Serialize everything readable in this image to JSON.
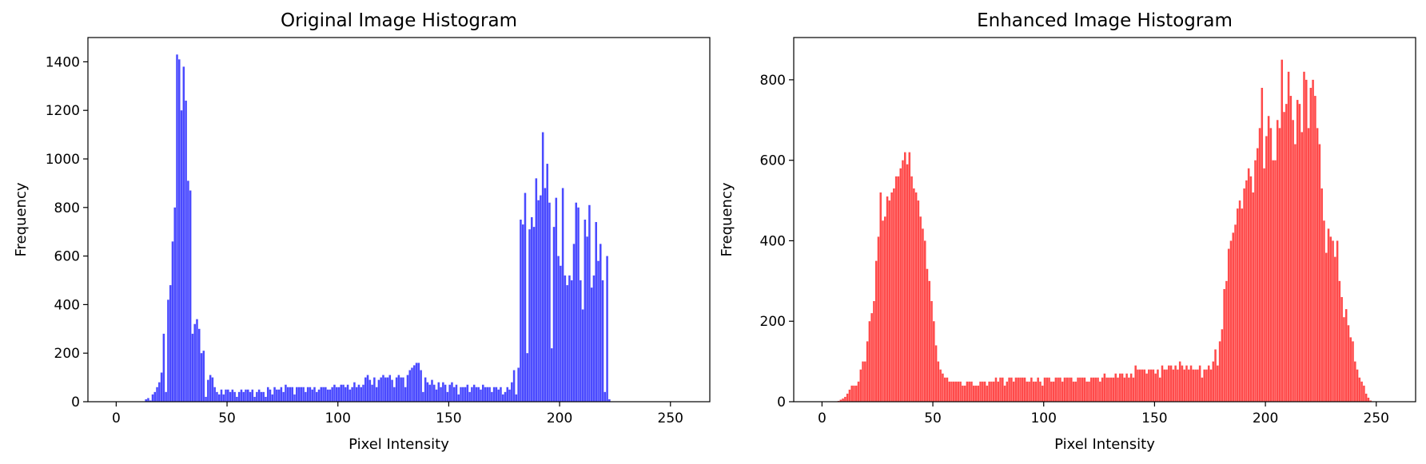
{
  "chart_data": [
    {
      "type": "bar",
      "title": "Original Image Histogram",
      "xlabel": "Pixel Intensity",
      "ylabel": "Frequency",
      "xlim": [
        -12.75,
        267.75
      ],
      "ylim": [
        0,
        1500
      ],
      "xticks": [
        0,
        50,
        100,
        150,
        200,
        250
      ],
      "yticks": [
        0,
        200,
        400,
        600,
        800,
        1000,
        1200,
        1400
      ],
      "color": "#4a4aff",
      "bin_start": 0,
      "bin_width": 1,
      "grid": false,
      "values": [
        0,
        0,
        0,
        0,
        0,
        0,
        0,
        0,
        0,
        0,
        0,
        0,
        0,
        10,
        15,
        5,
        30,
        40,
        60,
        80,
        120,
        280,
        40,
        420,
        480,
        660,
        800,
        1430,
        1410,
        1200,
        1380,
        1240,
        910,
        870,
        280,
        320,
        340,
        300,
        200,
        210,
        20,
        90,
        110,
        100,
        60,
        40,
        30,
        50,
        30,
        50,
        50,
        40,
        50,
        40,
        20,
        40,
        50,
        40,
        50,
        50,
        40,
        50,
        20,
        40,
        50,
        40,
        40,
        20,
        60,
        50,
        30,
        60,
        50,
        50,
        60,
        40,
        70,
        60,
        60,
        60,
        30,
        60,
        60,
        60,
        60,
        40,
        60,
        60,
        50,
        60,
        40,
        50,
        60,
        60,
        60,
        50,
        50,
        60,
        70,
        60,
        60,
        70,
        70,
        60,
        70,
        50,
        60,
        80,
        60,
        70,
        60,
        70,
        100,
        110,
        90,
        70,
        100,
        60,
        90,
        100,
        110,
        100,
        100,
        110,
        90,
        60,
        100,
        110,
        100,
        100,
        60,
        110,
        130,
        140,
        150,
        160,
        160,
        130,
        40,
        100,
        80,
        70,
        90,
        70,
        50,
        80,
        60,
        80,
        70,
        40,
        70,
        80,
        60,
        70,
        30,
        60,
        60,
        60,
        70,
        40,
        60,
        70,
        60,
        60,
        50,
        70,
        60,
        60,
        60,
        40,
        60,
        60,
        50,
        60,
        30,
        40,
        60,
        50,
        80,
        130,
        30,
        140,
        750,
        730,
        860,
        200,
        710,
        760,
        720,
        920,
        830,
        850,
        1110,
        880,
        980,
        820,
        220,
        720,
        840,
        600,
        560,
        880,
        520,
        480,
        520,
        500,
        650,
        820,
        800,
        500,
        380,
        750,
        680,
        810,
        470,
        520,
        740,
        580,
        650,
        500,
        40,
        600,
        10,
        0,
        0,
        0,
        0,
        0,
        0,
        0,
        0,
        0,
        0,
        0,
        0,
        0,
        0,
        0,
        0
      ]
    },
    {
      "type": "bar",
      "title": "Enhanced Image Histogram",
      "xlabel": "Pixel Intensity",
      "ylabel": "Frequency",
      "xlim": [
        -12.75,
        267.75
      ],
      "ylim": [
        0,
        905
      ],
      "xticks": [
        0,
        50,
        100,
        150,
        200,
        250
      ],
      "yticks": [
        0,
        200,
        400,
        600,
        800
      ],
      "color": "#ff4a4a",
      "bin_start": 0,
      "bin_width": 1,
      "grid": false,
      "values": [
        0,
        0,
        0,
        0,
        0,
        0,
        0,
        2,
        5,
        8,
        12,
        20,
        30,
        40,
        40,
        40,
        50,
        80,
        100,
        100,
        150,
        200,
        220,
        250,
        350,
        410,
        520,
        450,
        460,
        510,
        500,
        520,
        530,
        560,
        560,
        580,
        600,
        620,
        590,
        620,
        560,
        530,
        520,
        500,
        460,
        430,
        400,
        330,
        300,
        250,
        200,
        140,
        100,
        80,
        70,
        60,
        60,
        50,
        50,
        50,
        50,
        50,
        50,
        40,
        40,
        50,
        50,
        50,
        40,
        40,
        40,
        50,
        50,
        50,
        40,
        50,
        50,
        50,
        60,
        50,
        60,
        60,
        40,
        50,
        60,
        60,
        50,
        60,
        60,
        60,
        60,
        60,
        50,
        50,
        60,
        50,
        50,
        60,
        50,
        40,
        60,
        60,
        60,
        50,
        50,
        60,
        60,
        60,
        50,
        60,
        60,
        60,
        60,
        50,
        50,
        60,
        60,
        60,
        60,
        50,
        50,
        60,
        60,
        60,
        60,
        50,
        60,
        70,
        60,
        60,
        60,
        60,
        70,
        60,
        70,
        70,
        60,
        70,
        60,
        70,
        60,
        90,
        80,
        80,
        80,
        80,
        70,
        80,
        80,
        80,
        70,
        80,
        60,
        90,
        80,
        80,
        90,
        90,
        80,
        90,
        80,
        100,
        90,
        80,
        90,
        80,
        90,
        80,
        80,
        80,
        90,
        60,
        80,
        80,
        90,
        80,
        100,
        130,
        90,
        150,
        180,
        280,
        300,
        380,
        400,
        420,
        440,
        480,
        500,
        480,
        530,
        550,
        580,
        560,
        520,
        600,
        630,
        680,
        780,
        580,
        660,
        710,
        680,
        600,
        600,
        700,
        680,
        850,
        720,
        740,
        820,
        760,
        700,
        640,
        750,
        740,
        670,
        820,
        800,
        680,
        780,
        800,
        760,
        680,
        640,
        530,
        450,
        370,
        430,
        410,
        400,
        360,
        400,
        300,
        260,
        210,
        230,
        190,
        160,
        150,
        100,
        80,
        60,
        50,
        40,
        20,
        10,
        3,
        0,
        0,
        0,
        0,
        0,
        0,
        0
      ]
    }
  ]
}
